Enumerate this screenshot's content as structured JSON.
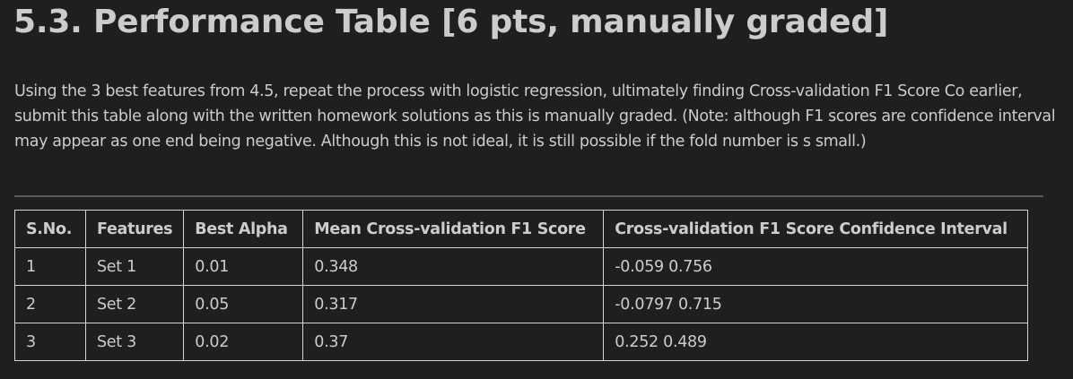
{
  "heading": "5.3. Performance Table [6 pts, manually graded]",
  "paragraph": "Using the 3 best features from 4.5, repeat the process with logistic regression, ultimately finding Cross-validation F1 Score Co earlier, submit this table along with the written homework solutions as this is manually graded. (Note: although F1 scores are confidence interval may appear as one end being negative. Although this is not ideal, it is still possible if the fold number is s small.)",
  "table": {
    "headers": [
      "S.No.",
      "Features",
      "Best Alpha",
      "Mean Cross-validation F1 Score",
      "Cross-validation F1 Score Confidence Interval"
    ],
    "rows": [
      [
        "1",
        "Set 1",
        "0.01",
        "0.348",
        "-0.059 0.756"
      ],
      [
        "2",
        "Set 2",
        "0.05",
        "0.317",
        "-0.0797 0.715"
      ],
      [
        "3",
        "Set 3",
        "0.02",
        "0.37",
        "0.252 0.489"
      ]
    ]
  }
}
